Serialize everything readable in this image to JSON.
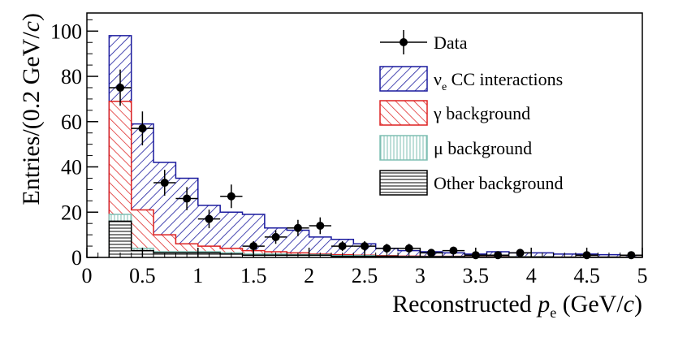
{
  "chart_data": {
    "type": "stacked-histogram",
    "xlabel_prefix": "Reconstructed ",
    "xlabel_var": "p",
    "xlabel_sub": "e",
    "xlabel_unit": " (GeV/",
    "xlabel_unit_italic": "c",
    "xlabel_close": ")",
    "ylabel_main": "Entries/(0.2 GeV/",
    "ylabel_italic": "c",
    "ylabel_close": ")",
    "xlim": [
      0,
      5
    ],
    "ylim": [
      0,
      108
    ],
    "x_ticks": [
      0,
      0.5,
      1,
      1.5,
      2,
      2.5,
      3,
      3.5,
      4,
      4.5,
      5
    ],
    "x_tick_labels": [
      "0",
      "0.5",
      "1",
      "1.5",
      "2",
      "2.5",
      "3",
      "3.5",
      "4",
      "4.5",
      "5"
    ],
    "y_ticks": [
      0,
      20,
      40,
      60,
      80,
      100
    ],
    "y_tick_labels": [
      "0",
      "20",
      "40",
      "60",
      "80",
      "100"
    ],
    "bin_edges": [
      0.2,
      0.4,
      0.6,
      0.8,
      1.0,
      1.2,
      1.4,
      1.6,
      1.8,
      2.0,
      2.2,
      2.4,
      2.6,
      2.8,
      3.0,
      3.2,
      3.4,
      3.6,
      3.8,
      4.0,
      4.2,
      4.4,
      4.6,
      4.8,
      5.0
    ],
    "series": [
      {
        "name": "Other background",
        "key": "other",
        "color": "#000000",
        "cumulative": [
          16,
          3,
          2,
          2,
          2,
          1.5,
          1,
          1,
          1,
          1,
          0.5,
          0.5,
          0.5,
          0.3,
          0.3,
          0.3,
          0.2,
          0.2,
          0.2,
          0.2,
          0.1,
          0.1,
          0.1,
          0.1
        ]
      },
      {
        "name": "μ background",
        "key": "mu",
        "color": "#7fbfb3",
        "cumulative": [
          19,
          4,
          2.5,
          2.5,
          2.5,
          2,
          1.5,
          1.5,
          1.2,
          1.2,
          0.8,
          0.8,
          0.6,
          0.4,
          0.4,
          0.4,
          0.3,
          0.3,
          0.3,
          0.3,
          0.2,
          0.2,
          0.2,
          0.2
        ]
      },
      {
        "name": "γ background",
        "key": "gamma",
        "color": "#dd2020",
        "cumulative": [
          69,
          21,
          10,
          6,
          5,
          4,
          3,
          2.5,
          2,
          1.5,
          1.2,
          1,
          0.8,
          0.6,
          0.5,
          0.5,
          0.4,
          0.4,
          0.3,
          0.3,
          0.2,
          0.2,
          0.2,
          0.2
        ]
      },
      {
        "name": "νe CC interactions",
        "key": "nue",
        "color": "#1a1a9e",
        "cumulative": [
          98,
          59,
          42,
          35,
          23,
          20,
          19,
          13,
          12,
          9,
          8,
          6,
          4,
          3,
          2.5,
          2,
          1.5,
          2.5,
          2,
          2,
          1.5,
          1.5,
          1.2,
          1
        ]
      }
    ],
    "data_points": {
      "name": "Data",
      "x": [
        0.3,
        0.5,
        0.7,
        0.9,
        1.1,
        1.3,
        1.5,
        1.7,
        1.9,
        2.1,
        2.3,
        2.5,
        2.7,
        2.9,
        3.1,
        3.3,
        3.5,
        3.7,
        3.9,
        4.5,
        4.9
      ],
      "y": [
        75,
        57,
        33,
        26,
        17,
        27,
        5,
        9,
        13,
        14,
        5,
        5,
        4,
        4,
        2,
        3,
        1,
        1,
        2,
        1,
        1
      ],
      "err": [
        8,
        7.5,
        5.7,
        5.1,
        4.1,
        5.2,
        2.2,
        3,
        3.6,
        3.7,
        2.2,
        2.2,
        2,
        2,
        1.4,
        1.7,
        1,
        1,
        1.4,
        1,
        1
      ]
    },
    "legend": [
      {
        "key": "data",
        "label": "Data"
      },
      {
        "key": "nue",
        "label_main": "ν",
        "label_sub": "e",
        "label_rest": " CC interactions"
      },
      {
        "key": "gamma",
        "label": "γ background"
      },
      {
        "key": "mu",
        "label": "μ background"
      },
      {
        "key": "other",
        "label": "Other background"
      }
    ],
    "legend_position": "top-right"
  }
}
